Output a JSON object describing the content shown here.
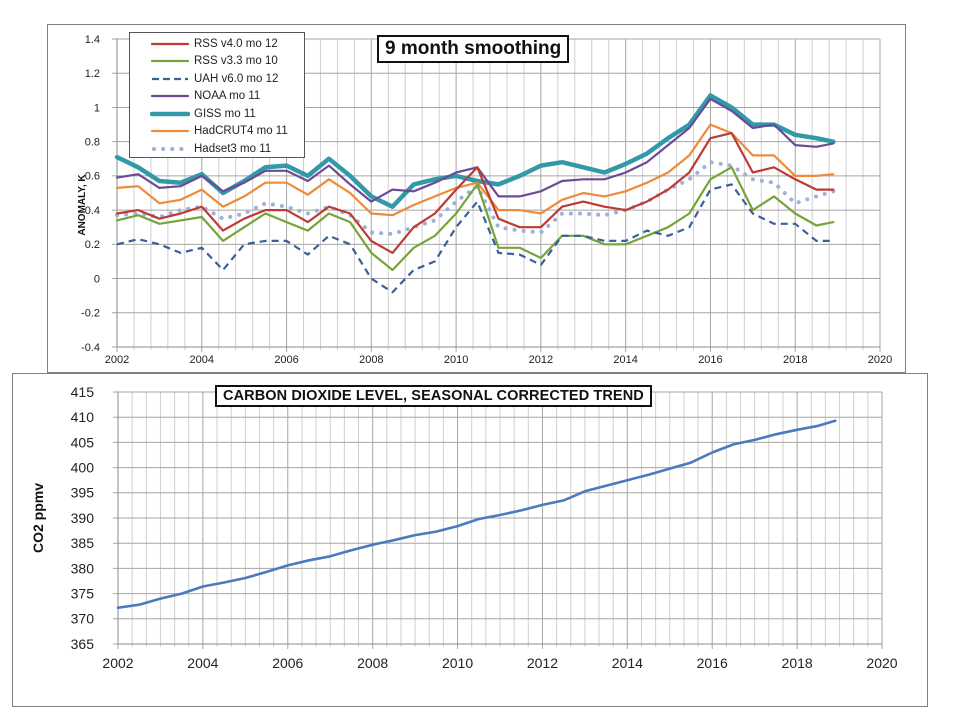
{
  "chart_data": [
    {
      "type": "line",
      "title": "9 month smoothing",
      "xlabel": "",
      "ylabel": "ANOMALY, K",
      "xlim": [
        2002,
        2020
      ],
      "ylim": [
        -0.4,
        1.4
      ],
      "xticks": [
        "2002",
        "2004",
        "2006",
        "2008",
        "2010",
        "2012",
        "2014",
        "2016",
        "2018",
        "2020"
      ],
      "yticks": [
        "-0.4",
        "-0.2",
        "0",
        "0.2",
        "0.4",
        "0.6",
        "0.8",
        "1",
        "1.2",
        "1.4"
      ],
      "grid": true,
      "legend_position": "top-left",
      "x": [
        2002.0,
        2002.5,
        2003.0,
        2003.5,
        2004.0,
        2004.5,
        2005.0,
        2005.5,
        2006.0,
        2006.5,
        2007.0,
        2007.5,
        2008.0,
        2008.5,
        2009.0,
        2009.5,
        2010.0,
        2010.5,
        2011.0,
        2011.5,
        2012.0,
        2012.5,
        2013.0,
        2013.5,
        2014.0,
        2014.5,
        2015.0,
        2015.5,
        2016.0,
        2016.5,
        2017.0,
        2017.5,
        2018.0,
        2018.5,
        2018.9
      ],
      "series": [
        {
          "name": "RSS v4.0 mo 12",
          "color": "#be3a34",
          "style": "solid",
          "values": [
            0.38,
            0.4,
            0.35,
            0.38,
            0.42,
            0.28,
            0.35,
            0.4,
            0.4,
            0.33,
            0.42,
            0.38,
            0.22,
            0.15,
            0.3,
            0.38,
            0.52,
            0.65,
            0.35,
            0.3,
            0.3,
            0.42,
            0.45,
            0.42,
            0.4,
            0.45,
            0.52,
            0.62,
            0.82,
            0.85,
            0.62,
            0.65,
            0.58,
            0.52,
            0.52
          ]
        },
        {
          "name": "RSS v3.3 mo 10",
          "color": "#77a43a",
          "style": "solid",
          "values": [
            0.34,
            0.37,
            0.32,
            0.34,
            0.36,
            0.22,
            0.3,
            0.38,
            0.33,
            0.28,
            0.38,
            0.33,
            0.15,
            0.05,
            0.18,
            0.25,
            0.38,
            0.55,
            0.18,
            0.18,
            0.12,
            0.25,
            0.25,
            0.2,
            0.2,
            0.25,
            0.3,
            0.38,
            0.58,
            0.65,
            0.4,
            0.48,
            0.38,
            0.31,
            0.33
          ]
        },
        {
          "name": "UAH v6.0 mo 12",
          "color": "#3a5f9a",
          "style": "dashed",
          "values": [
            0.2,
            0.23,
            0.2,
            0.15,
            0.18,
            0.05,
            0.2,
            0.22,
            0.22,
            0.14,
            0.25,
            0.2,
            0.0,
            -0.08,
            0.05,
            0.1,
            0.3,
            0.45,
            0.15,
            0.14,
            0.08,
            0.25,
            0.25,
            0.22,
            0.22,
            0.28,
            0.25,
            0.3,
            0.52,
            0.55,
            0.38,
            0.32,
            0.32,
            0.22,
            0.22
          ]
        },
        {
          "name": "NOAA mo 11",
          "color": "#6d4b94",
          "style": "solid",
          "values": [
            0.59,
            0.61,
            0.53,
            0.54,
            0.6,
            0.51,
            0.56,
            0.63,
            0.63,
            0.57,
            0.66,
            0.55,
            0.45,
            0.52,
            0.51,
            0.56,
            0.62,
            0.65,
            0.48,
            0.48,
            0.51,
            0.57,
            0.58,
            0.58,
            0.62,
            0.68,
            0.78,
            0.88,
            1.05,
            0.98,
            0.88,
            0.9,
            0.78,
            0.77,
            0.79
          ]
        },
        {
          "name": "GISS mo 11",
          "color": "#3399a8",
          "style": "thick",
          "values": [
            0.71,
            0.65,
            0.57,
            0.56,
            0.61,
            0.5,
            0.57,
            0.65,
            0.66,
            0.6,
            0.7,
            0.6,
            0.48,
            0.42,
            0.55,
            0.58,
            0.6,
            0.57,
            0.55,
            0.6,
            0.66,
            0.68,
            0.65,
            0.62,
            0.67,
            0.73,
            0.82,
            0.9,
            1.07,
            1.0,
            0.9,
            0.9,
            0.84,
            0.82,
            0.8
          ]
        },
        {
          "name": "HadCRUT4 mo 11",
          "color": "#ee8a3a",
          "style": "solid",
          "values": [
            0.53,
            0.54,
            0.44,
            0.46,
            0.52,
            0.42,
            0.48,
            0.56,
            0.56,
            0.49,
            0.58,
            0.5,
            0.38,
            0.37,
            0.43,
            0.48,
            0.53,
            0.56,
            0.4,
            0.4,
            0.38,
            0.46,
            0.5,
            0.48,
            0.51,
            0.56,
            0.62,
            0.72,
            0.9,
            0.85,
            0.72,
            0.72,
            0.6,
            0.6,
            0.61
          ]
        },
        {
          "name": "Hadset3 mo 11",
          "color": "#9eb1d6",
          "style": "dotted",
          "values": [
            0.37,
            0.38,
            0.36,
            0.4,
            0.42,
            0.35,
            0.38,
            0.44,
            0.42,
            0.38,
            0.42,
            0.37,
            0.27,
            0.26,
            0.3,
            0.34,
            0.45,
            0.54,
            0.3,
            0.28,
            0.27,
            0.38,
            0.38,
            0.37,
            0.4,
            0.45,
            0.52,
            0.58,
            0.68,
            0.66,
            0.58,
            0.56,
            0.44,
            0.48,
            0.51
          ]
        }
      ]
    },
    {
      "type": "line",
      "title": "CARBON DIOXIDE LEVEL, SEASONAL CORRECTED TREND",
      "xlabel": "",
      "ylabel": "CO2 ppmv",
      "xlim": [
        2002,
        2020
      ],
      "ylim": [
        365,
        415
      ],
      "xticks": [
        "2002",
        "2004",
        "2006",
        "2008",
        "2010",
        "2012",
        "2014",
        "2016",
        "2018",
        "2020"
      ],
      "yticks": [
        "365",
        "370",
        "375",
        "380",
        "385",
        "390",
        "395",
        "400",
        "405",
        "410",
        "415"
      ],
      "grid": true,
      "x": [
        2002.0,
        2002.5,
        2003.0,
        2003.5,
        2004.0,
        2004.5,
        2005.0,
        2005.5,
        2006.0,
        2006.5,
        2007.0,
        2007.5,
        2008.0,
        2008.5,
        2009.0,
        2009.5,
        2010.0,
        2010.5,
        2011.0,
        2011.5,
        2012.0,
        2012.5,
        2013.0,
        2013.5,
        2014.0,
        2014.5,
        2015.0,
        2015.5,
        2016.0,
        2016.5,
        2017.0,
        2017.5,
        2018.0,
        2018.5,
        2018.9
      ],
      "series": [
        {
          "name": "CO2",
          "color": "#4a7bbf",
          "style": "solid",
          "values": [
            372.2,
            372.8,
            374.0,
            375.0,
            376.4,
            377.2,
            378.1,
            379.3,
            380.6,
            381.6,
            382.4,
            383.6,
            384.7,
            385.6,
            386.6,
            387.3,
            388.4,
            389.8,
            390.6,
            391.5,
            392.6,
            393.5,
            395.3,
            396.4,
            397.5,
            398.6,
            399.8,
            401.0,
            403.0,
            404.6,
            405.5,
            406.6,
            407.5,
            408.3,
            409.3
          ]
        }
      ]
    }
  ]
}
